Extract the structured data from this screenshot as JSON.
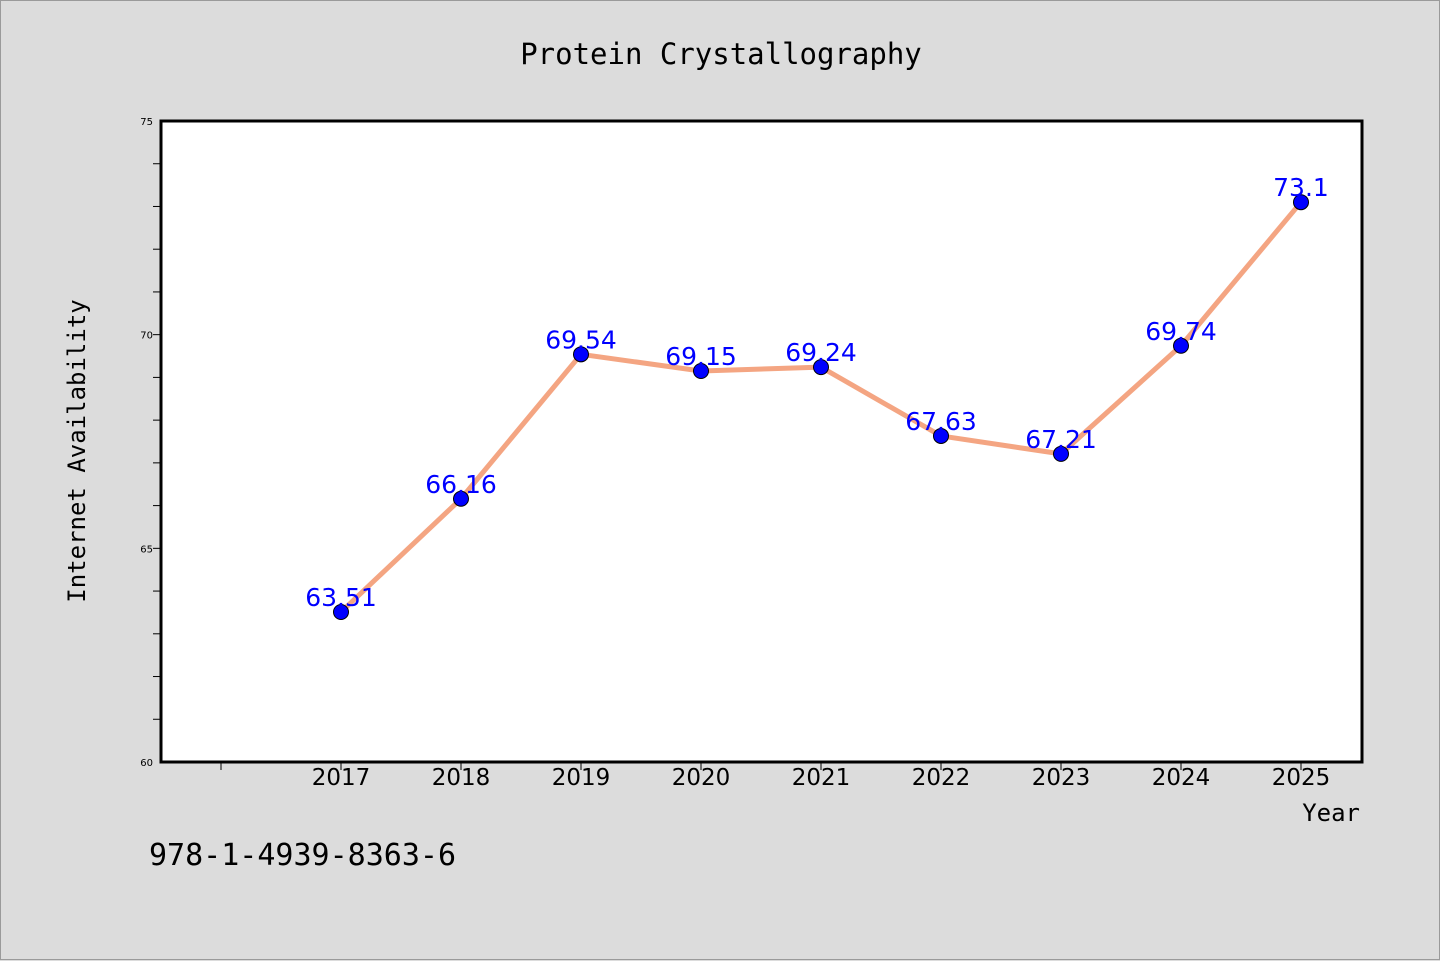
{
  "chart_data": {
    "type": "line",
    "title": "Protein Crystallography",
    "xlabel": "Year",
    "ylabel": "Internet Availability",
    "categories": [
      "2017",
      "2018",
      "2019",
      "2020",
      "2021",
      "2022",
      "2023",
      "2024",
      "2025"
    ],
    "series": [
      {
        "values": [
          63.51,
          66.16,
          69.54,
          69.15,
          69.24,
          67.63,
          67.21,
          69.74,
          73.1
        ],
        "data_labels": [
          "63.51",
          "66.16",
          "69.54",
          "69.15",
          "69.24",
          "67.63",
          "67.21",
          "69.74",
          "73.1"
        ],
        "line_color": "#f4a582",
        "marker_color": "#0000ff"
      }
    ],
    "ylim": [
      60,
      75
    ],
    "yticks": [
      60,
      65,
      70,
      75
    ],
    "ytick_labels": [
      "60",
      "65",
      "70",
      "75"
    ],
    "grid": false,
    "label_color": "#0000ff"
  },
  "footer": {
    "code": "978-1-4939-8363-6"
  }
}
